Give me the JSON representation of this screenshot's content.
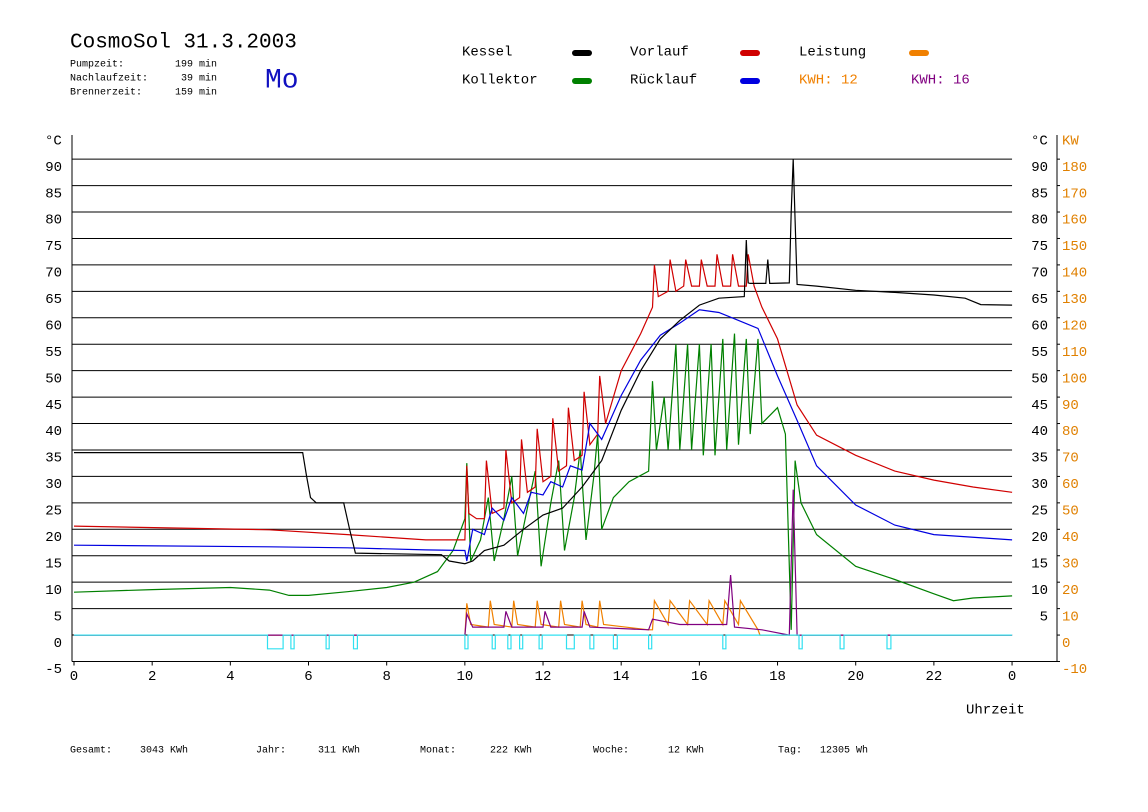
{
  "header": {
    "title": "CosmoSol 31.3.2003",
    "day": "Mo",
    "stats": [
      {
        "label": "Pumpzeit:",
        "value": "199 min"
      },
      {
        "label": "Nachlaufzeit:",
        "value": "39 min"
      },
      {
        "label": "Brennerzeit:",
        "value": "159 min"
      }
    ]
  },
  "chart_data": {
    "type": "line",
    "x_label": "Uhrzeit",
    "y_unit": "°C",
    "y2_unit": "KW",
    "xlim": [
      0,
      25.15
    ],
    "xticks": [
      0,
      2,
      4,
      6,
      8,
      10,
      12,
      14,
      16,
      18,
      20,
      22,
      {
        "value": 24,
        "label": "0"
      }
    ],
    "ylim": [
      -5,
      95
    ],
    "yticks": [
      -5,
      0,
      5,
      10,
      15,
      20,
      25,
      30,
      35,
      40,
      45,
      50,
      55,
      60,
      65,
      70,
      75,
      80,
      85,
      90
    ],
    "y2lim": [
      -10,
      190
    ],
    "y2ticks": [
      -10,
      0,
      10,
      20,
      30,
      40,
      50,
      60,
      70,
      80,
      90,
      100,
      110,
      120,
      130,
      140,
      150,
      160,
      170,
      180
    ],
    "grid": true,
    "energy": [
      {
        "label": "KWH:",
        "value": 12,
        "color": "#f08000"
      },
      {
        "label": "KWH:",
        "value": 16,
        "color": "#800080"
      }
    ],
    "series": [
      {
        "name": "Kessel",
        "color": "#000000",
        "x": [
          0,
          5.85,
          5.95,
          6.05,
          6.2,
          6.9,
          7.05,
          7.2,
          9.4,
          9.6,
          10,
          10.2,
          10.5,
          11,
          11.5,
          12,
          12.5,
          13,
          13.5,
          14,
          14.5,
          15,
          15.5,
          16,
          16.5,
          17.15,
          17.2,
          17.25,
          17.3,
          17.7,
          17.75,
          17.8,
          17.85,
          18.3,
          18.35,
          18.4,
          18.5,
          19,
          20,
          21,
          22,
          22.8,
          23.2,
          24
        ],
        "values": [
          34.5,
          34.5,
          30,
          26,
          25,
          25,
          20,
          15.5,
          15.2,
          14,
          13.5,
          14,
          16,
          17,
          20,
          22.7,
          24,
          28,
          33,
          42.5,
          50,
          56,
          59.5,
          62.4,
          63.7,
          64,
          74.7,
          66.6,
          66.5,
          66.5,
          71,
          66.5,
          66.5,
          66.6,
          80,
          90,
          66.3,
          66,
          65.2,
          64.8,
          64.3,
          63.7,
          62.5,
          62.4
        ]
      },
      {
        "name": "Kollektor",
        "color": "#008000",
        "x": [
          0,
          2,
          4,
          5,
          5.5,
          6,
          7,
          8,
          8.7,
          9.3,
          9.7,
          10,
          10.05,
          10.15,
          10.4,
          10.6,
          10.75,
          11,
          11.2,
          11.35,
          11.6,
          11.8,
          11.95,
          12.2,
          12.4,
          12.55,
          12.8,
          12.95,
          13.1,
          13.3,
          13.4,
          13.5,
          13.8,
          14.2,
          14.7,
          14.8,
          14.9,
          15.1,
          15.2,
          15.4,
          15.5,
          15.7,
          15.8,
          16,
          16.1,
          16.3,
          16.4,
          16.6,
          16.7,
          16.9,
          17,
          17.2,
          17.3,
          17.5,
          17.6,
          18,
          18.2,
          18.35,
          18.45,
          18.6,
          19,
          20,
          21,
          22,
          22.5,
          23,
          24
        ],
        "values": [
          8.1,
          8.6,
          9,
          8.5,
          7.5,
          7.5,
          8.2,
          9,
          10,
          12,
          16,
          22,
          32.5,
          14,
          18,
          26,
          14,
          22,
          30,
          15,
          24,
          31,
          13,
          25,
          33,
          16,
          26,
          35,
          18,
          30,
          38,
          20,
          26,
          29,
          31,
          48,
          35,
          45,
          35,
          55,
          35,
          55,
          35,
          55,
          34,
          55,
          34,
          56,
          35,
          57,
          36,
          56,
          38,
          56,
          40,
          43,
          38,
          1,
          33,
          25,
          19,
          13,
          10.5,
          7.8,
          6.5,
          7,
          7.4
        ]
      },
      {
        "name": "Vorlauf",
        "color": "#d00000",
        "x": [
          0,
          5,
          7,
          9,
          10,
          10.05,
          10.1,
          10.3,
          10.5,
          10.55,
          10.7,
          11,
          11.05,
          11.2,
          11.4,
          11.45,
          11.6,
          11.8,
          11.85,
          12,
          12.2,
          12.25,
          12.4,
          12.6,
          12.65,
          12.8,
          13,
          13.05,
          13.2,
          13.4,
          13.45,
          13.6,
          14,
          14.5,
          14.8,
          14.85,
          14.95,
          15.2,
          15.25,
          15.4,
          15.6,
          15.65,
          15.8,
          16,
          16.05,
          16.2,
          16.4,
          16.45,
          16.6,
          16.8,
          16.85,
          17,
          17.2,
          17.25,
          17.4,
          17.6,
          18,
          18.5,
          19,
          20,
          21,
          22,
          23,
          24
        ],
        "values": [
          20.6,
          19.9,
          19,
          18,
          18,
          32,
          23,
          22,
          22,
          33,
          23,
          24,
          35,
          25,
          26,
          37,
          27,
          28,
          39,
          29,
          30,
          41,
          31,
          32,
          43,
          33,
          34,
          46,
          36,
          38,
          49,
          40,
          50,
          57,
          62,
          70,
          64,
          65,
          71,
          65,
          66,
          71,
          66,
          66,
          71,
          66,
          66,
          72,
          66,
          66,
          72,
          66,
          66,
          72,
          66,
          62,
          56,
          43.5,
          37.8,
          34,
          31,
          29.3,
          28,
          27
        ]
      },
      {
        "name": "Rücklauf",
        "color": "#0000e0",
        "x": [
          0,
          5,
          7,
          9,
          10,
          10.05,
          10.2,
          10.5,
          10.7,
          11,
          11.2,
          11.5,
          11.7,
          12,
          12.2,
          12.5,
          12.7,
          13,
          13.2,
          13.5,
          14,
          14.5,
          15,
          15.5,
          16,
          16.5,
          17,
          17.5,
          18,
          18.5,
          19,
          20,
          21,
          22,
          24
        ],
        "values": [
          17,
          16.7,
          16.5,
          16.1,
          16,
          14,
          20,
          19,
          24,
          21.7,
          26,
          23,
          27,
          26.5,
          29,
          28,
          32,
          31.2,
          40,
          37,
          45.3,
          52,
          56.7,
          59,
          61.5,
          61,
          59.5,
          58,
          49,
          40.6,
          32,
          24.6,
          20.8,
          19,
          18
        ]
      },
      {
        "name": "Leistung",
        "color": "#f08000",
        "axis": "y2",
        "x": [
          0,
          10,
          10.05,
          10.15,
          10.6,
          10.65,
          10.75,
          11.2,
          11.25,
          11.35,
          11.8,
          11.85,
          11.95,
          12.4,
          12.45,
          12.55,
          12.95,
          13,
          13.1,
          13.4,
          13.45,
          13.55,
          14.7,
          14.8,
          14.85,
          15.2,
          15.25,
          15.7,
          15.75,
          16.2,
          16.25,
          16.6,
          16.65,
          17,
          17.05,
          17.5,
          17.55,
          24
        ],
        "values": [
          0,
          0,
          12,
          4,
          3,
          13,
          4,
          3,
          13,
          4,
          3,
          13,
          4,
          3,
          13,
          4,
          3,
          13,
          4,
          3,
          13,
          4,
          2,
          2,
          13,
          4,
          13,
          4,
          13,
          4,
          13,
          4,
          13,
          4,
          13,
          2,
          0,
          0
        ]
      },
      {
        "color": "#800080",
        "axis": "y2",
        "x": [
          0,
          10,
          10.05,
          10.2,
          11,
          11.05,
          11.2,
          12,
          12.05,
          12.2,
          13,
          13.05,
          13.2,
          14.7,
          14.8,
          15.5,
          16.7,
          16.8,
          16.9,
          17.6,
          18.3,
          18.4,
          18.5,
          24
        ],
        "values": [
          0,
          0,
          8,
          3,
          3,
          9,
          3,
          3,
          9,
          3,
          3,
          9,
          3,
          2,
          6,
          4,
          4,
          22.7,
          3,
          2,
          0,
          55,
          0,
          0
        ]
      },
      {
        "color": "#30e0f0",
        "x": [
          0,
          4.95,
          4.95,
          5.35,
          5.35,
          5.55,
          5.55,
          5.63,
          5.63,
          6.45,
          6.45,
          6.53,
          6.53,
          7.15,
          7.15,
          7.25,
          7.25,
          10,
          10,
          10.08,
          10.08,
          10.7,
          10.7,
          10.78,
          10.78,
          11.1,
          11.1,
          11.18,
          11.18,
          11.4,
          11.4,
          11.48,
          11.48,
          11.9,
          11.9,
          11.98,
          11.98,
          12.6,
          12.6,
          12.8,
          12.8,
          13.2,
          13.2,
          13.3,
          13.3,
          13.8,
          13.8,
          13.9,
          13.9,
          14.7,
          14.7,
          14.78,
          14.78,
          16.6,
          16.6,
          16.68,
          16.68,
          18.55,
          18.55,
          18.63,
          18.63,
          19.6,
          19.6,
          19.7,
          19.7,
          20.8,
          20.8,
          20.9,
          20.9,
          24
        ],
        "values": [
          0,
          0,
          -2.6,
          -2.6,
          0,
          0,
          -2.6,
          -2.6,
          0,
          0,
          -2.6,
          -2.6,
          0,
          0,
          -2.6,
          -2.6,
          0,
          0,
          -2.6,
          -2.6,
          0,
          0,
          -2.6,
          -2.6,
          0,
          0,
          -2.6,
          -2.6,
          0,
          0,
          -2.6,
          -2.6,
          0,
          0,
          -2.6,
          -2.6,
          0,
          0,
          -2.6,
          -2.6,
          0,
          0,
          -2.6,
          -2.6,
          0,
          0,
          -2.6,
          -2.6,
          0,
          0,
          -2.6,
          -2.6,
          0,
          0,
          -2.6,
          -2.6,
          0,
          0,
          -2.6,
          -2.6,
          0,
          0,
          -2.6,
          -2.6,
          0,
          0,
          -2.6,
          -2.6,
          0,
          0
        ]
      }
    ]
  },
  "footer": {
    "totals": [
      {
        "label": "Gesamt:",
        "value": "3043 KWh"
      },
      {
        "label": "Jahr:",
        "value": "311 KWh"
      },
      {
        "label": "Monat:",
        "value": "222 KWh"
      },
      {
        "label": "Woche:",
        "value": "12 KWh"
      },
      {
        "label": "Tag:",
        "value": "12305 Wh"
      }
    ]
  }
}
